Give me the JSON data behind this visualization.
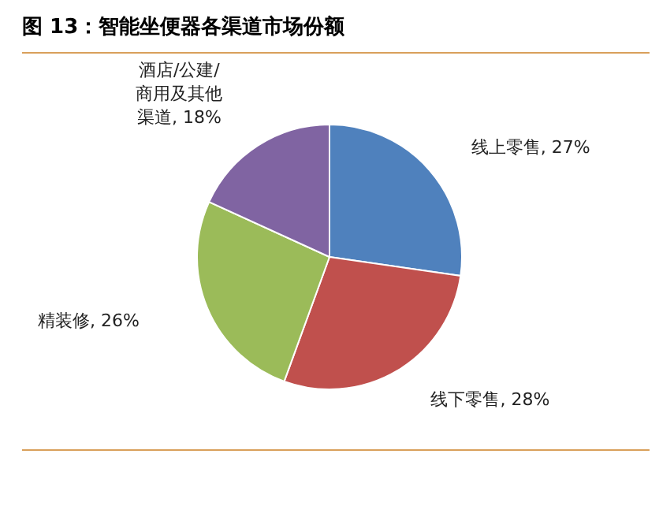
{
  "chart_data": {
    "type": "pie",
    "title": "图 13：智能坐便器各渠道市场份额",
    "categories": [
      "线上零售",
      "线下零售",
      "精装修",
      "酒店/公建/商用及其他渠道"
    ],
    "values": [
      27,
      28,
      26,
      18
    ],
    "value_labels": [
      "27%",
      "28%",
      "26%",
      "18%"
    ],
    "colors": [
      "#4f81bd",
      "#c0504d",
      "#9bbb59",
      "#8064a2"
    ]
  }
}
